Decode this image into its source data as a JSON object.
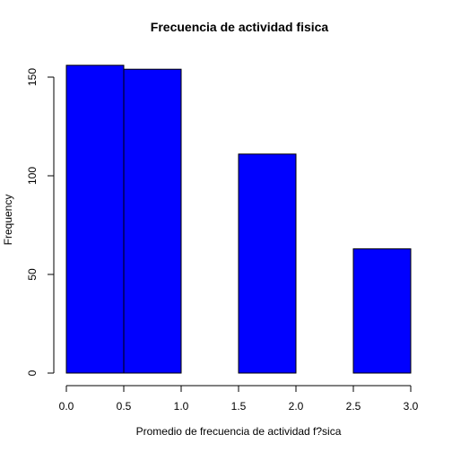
{
  "chart_data": {
    "type": "bar",
    "title": "Frecuencia de actividad fisica",
    "xlabel": "Promedio de frecuencia de actividad f?sica",
    "ylabel": "Frequency",
    "bins": [
      {
        "from": 0.0,
        "to": 0.5,
        "count": 156
      },
      {
        "from": 0.5,
        "to": 1.0,
        "count": 154
      },
      {
        "from": 1.0,
        "to": 1.5,
        "count": 0
      },
      {
        "from": 1.5,
        "to": 2.0,
        "count": 111
      },
      {
        "from": 2.0,
        "to": 2.5,
        "count": 0
      },
      {
        "from": 2.5,
        "to": 3.0,
        "count": 63
      }
    ],
    "xlim": [
      0,
      3.0
    ],
    "ylim": [
      0,
      160
    ],
    "xticks": [
      "0.0",
      "0.5",
      "1.0",
      "1.5",
      "2.0",
      "2.5",
      "3.0"
    ],
    "yticks": [
      "0",
      "50",
      "100",
      "150"
    ],
    "bar_color": "#0000ff",
    "grid": false
  }
}
